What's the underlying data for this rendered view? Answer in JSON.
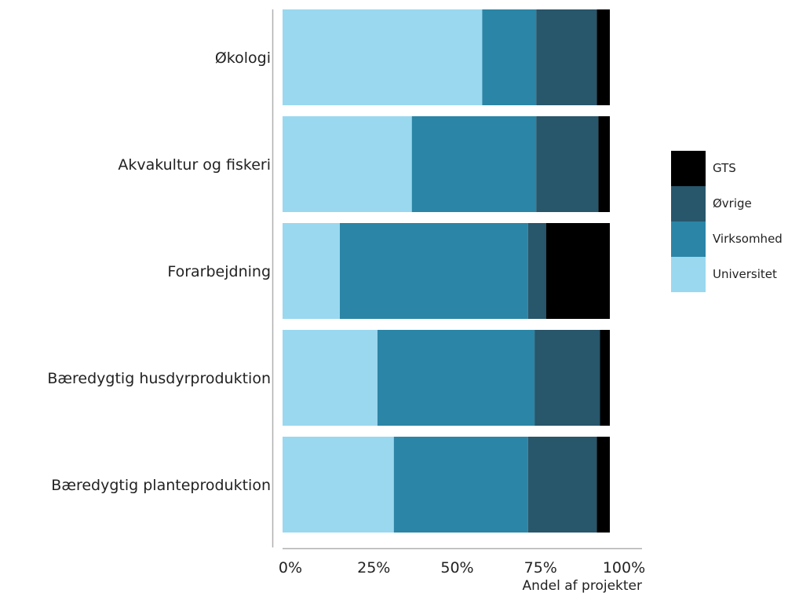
{
  "chart_data": {
    "type": "bar",
    "orientation": "horizontal",
    "stacked": true,
    "normalized": true,
    "categories": [
      "Økologi",
      "Akvakultur og fiskeri",
      "Forarbejdning",
      "Bæredygtig husdyrproduktion",
      "Bæredygtig planteproduktion"
    ],
    "series": [
      {
        "name": "Universitet",
        "color": "#9AD8F0",
        "values": [
          0.61,
          0.395,
          0.175,
          0.29,
          0.34
        ]
      },
      {
        "name": "Virksomhed",
        "color": "#2B85A6",
        "values": [
          0.165,
          0.38,
          0.575,
          0.48,
          0.41
        ]
      },
      {
        "name": "Øvrige",
        "color": "#28566B",
        "values": [
          0.185,
          0.19,
          0.055,
          0.2,
          0.21
        ]
      },
      {
        "name": "GTS",
        "color": "#000000",
        "values": [
          0.04,
          0.035,
          0.195,
          0.03,
          0.04
        ]
      }
    ],
    "xticks": [
      "0%",
      "25%",
      "50%",
      "75%",
      "100%"
    ],
    "xlim": [
      0,
      1
    ],
    "xlabel": "Andel af projekter",
    "ylabel": "",
    "title": "",
    "grid": false,
    "legend_position": "right",
    "legend_order": [
      "GTS",
      "Øvrige",
      "Virksomhed",
      "Universitet"
    ]
  }
}
